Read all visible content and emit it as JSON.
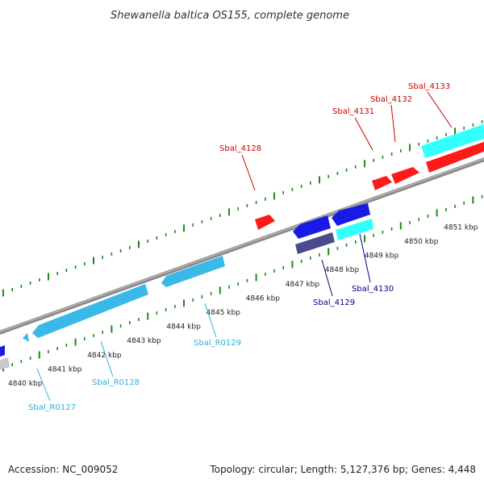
{
  "title": "Shewanella baltica OS155, complete genome",
  "footer": {
    "accession": "Accession: NC_009052",
    "summary": "Topology: circular; Length: 5,127,376 bp; Genes: 4,448"
  },
  "colors": {
    "backbone": "#8a8a8a",
    "ticks": "#1a8a1a",
    "red_gene": "#ff1a1a",
    "red_label": "#cc0000",
    "blue_gene": "#1a1ae6",
    "blue_label": "#00008b",
    "cyan_gene": "#33ffff",
    "rna_gene": "#3ab8e8",
    "rna_label": "#2ab0dd",
    "purple_gene": "#4a4a8c",
    "gray_gene": "#c8c8c8"
  },
  "kbp_labels": [
    "4840 kbp",
    "4841 kbp",
    "4842 kbp",
    "4843 kbp",
    "4844 kbp",
    "4845 kbp",
    "4846 kbp",
    "4847 kbp",
    "4848 kbp",
    "4849 kbp",
    "4850 kbp",
    "4851 kbp"
  ],
  "gene_labels": [
    {
      "id": "Sbal_4128",
      "color": "red"
    },
    {
      "id": "Sbal_4131",
      "color": "red"
    },
    {
      "id": "Sbal_4132",
      "color": "red"
    },
    {
      "id": "Sbal_4133",
      "color": "red"
    },
    {
      "id": "Sbal_4129",
      "color": "blue"
    },
    {
      "id": "Sbal_4130",
      "color": "blue"
    },
    {
      "id": "Sbal_R0127",
      "color": "rna"
    },
    {
      "id": "Sbal_R0128",
      "color": "rna"
    },
    {
      "id": "Sbal_R0129",
      "color": "rna"
    }
  ]
}
